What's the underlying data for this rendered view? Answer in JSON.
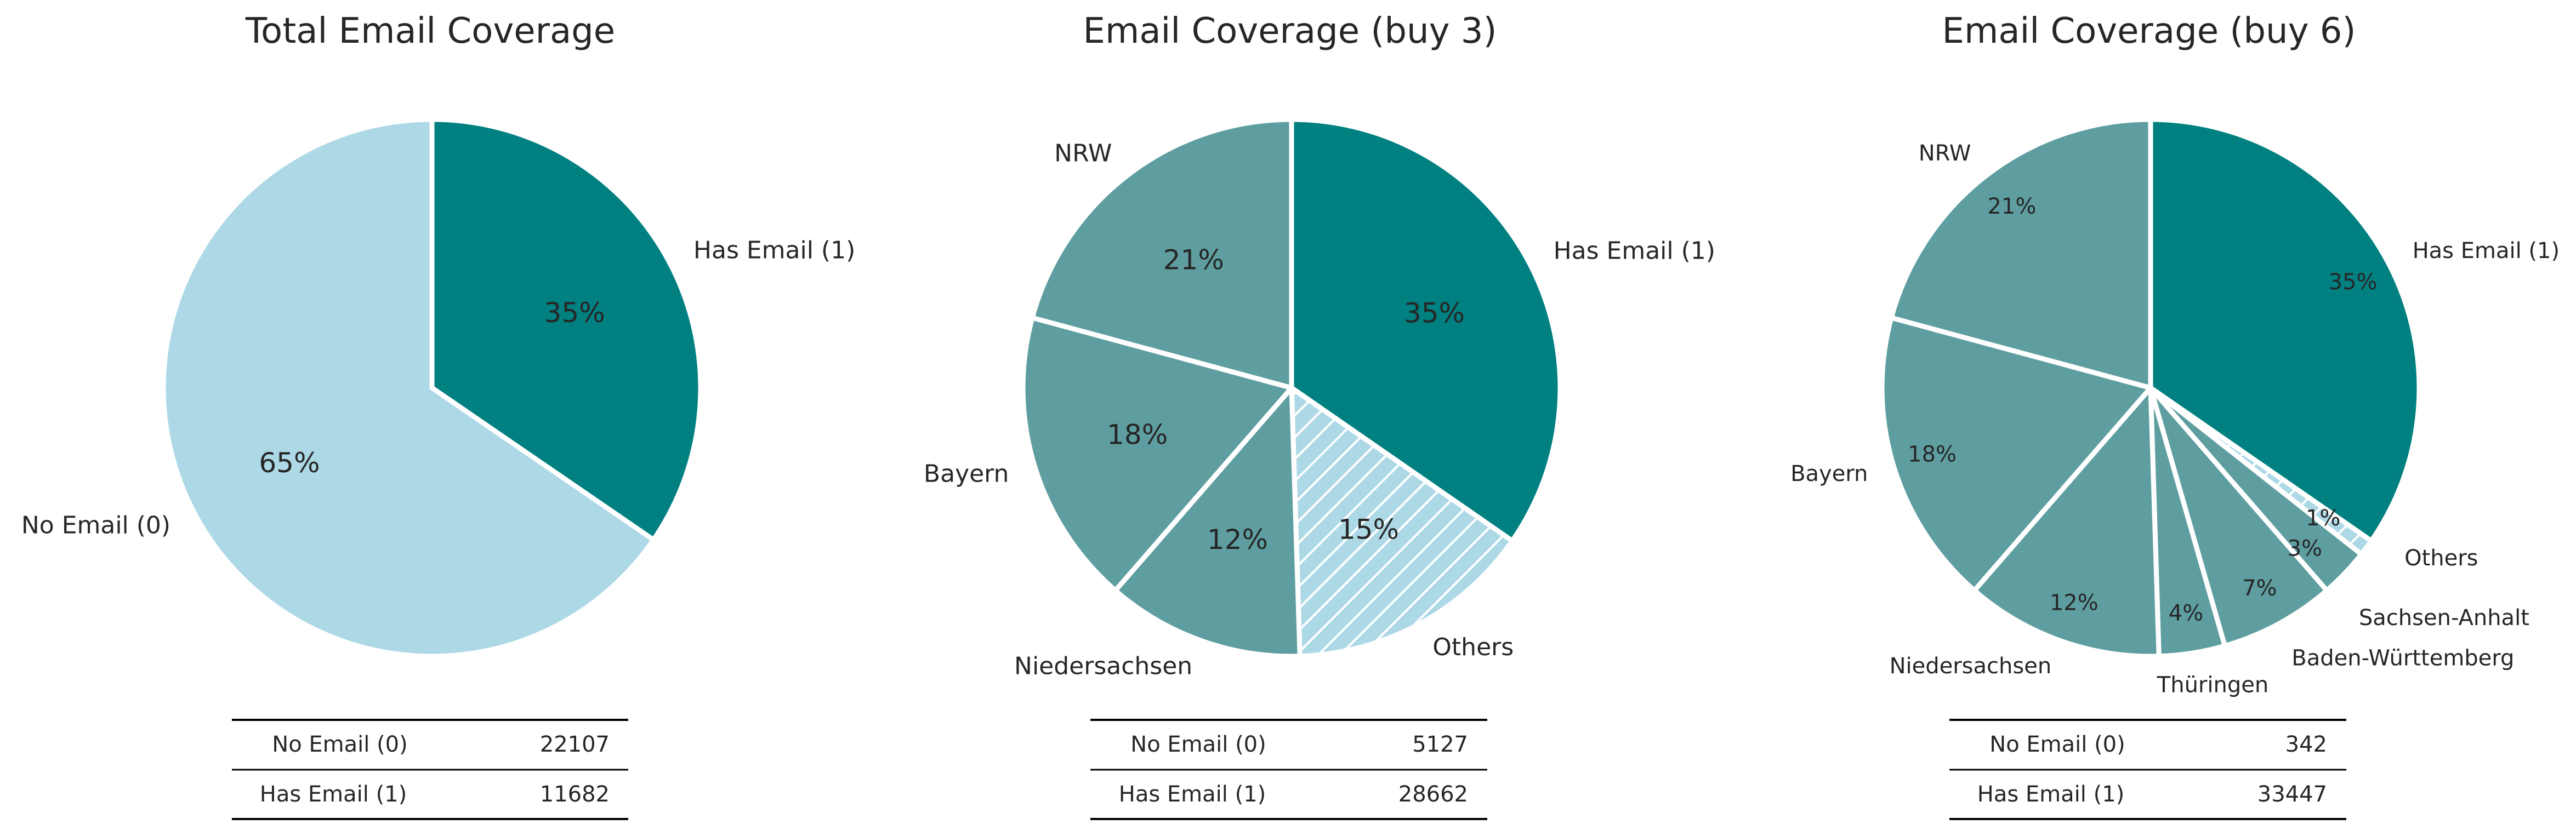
{
  "colors": {
    "has_email": "#008080",
    "no_email": "#add8e6",
    "region": "#5f9ea0",
    "others": "#add8e6",
    "edge": "#ffffff",
    "hatch": "#ffffff",
    "text": "#262626",
    "table_rule": "#000000"
  },
  "chart_data": [
    {
      "type": "pie",
      "title": "Total Email Coverage",
      "start_angle_deg": 90,
      "direction": "clockwise",
      "slices": [
        {
          "label": "Has Email (1)",
          "value": 11682,
          "pct_label": "35%",
          "color_key": "has_email"
        },
        {
          "label": "No Email (0)",
          "value": 22107,
          "pct_label": "65%",
          "color_key": "no_email"
        }
      ],
      "table": [
        {
          "label": "No Email (0)",
          "value": "22107"
        },
        {
          "label": "Has Email (1)",
          "value": "11682"
        }
      ]
    },
    {
      "type": "pie",
      "title": "Email Coverage (buy 3)",
      "start_angle_deg": 90,
      "direction": "clockwise",
      "slices": [
        {
          "label": "Has Email (1)",
          "value": 35,
          "pct_label": "35%",
          "color_key": "has_email"
        },
        {
          "label": "Others",
          "value": 15,
          "pct_label": "15%",
          "color_key": "others",
          "hatch": true
        },
        {
          "label": "Niedersachsen",
          "value": 12,
          "pct_label": "12%",
          "color_key": "region"
        },
        {
          "label": "Bayern",
          "value": 18,
          "pct_label": "18%",
          "color_key": "region"
        },
        {
          "label": "NRW",
          "value": 21,
          "pct_label": "21%",
          "color_key": "region"
        }
      ],
      "table": [
        {
          "label": "No Email (0)",
          "value": "5127"
        },
        {
          "label": "Has Email (1)",
          "value": "28662"
        }
      ]
    },
    {
      "type": "pie",
      "title": "Email Coverage (buy 6)",
      "start_angle_deg": 90,
      "direction": "clockwise",
      "slices": [
        {
          "label": "Has Email (1)",
          "value": 35,
          "pct_label": "35%",
          "color_key": "has_email"
        },
        {
          "label": "Others",
          "value": 1,
          "pct_label": "1%",
          "color_key": "others",
          "hatch": true
        },
        {
          "label": "Sachsen-Anhalt",
          "value": 3,
          "pct_label": "3%",
          "color_key": "region"
        },
        {
          "label": "Baden-Württemberg",
          "value": 7,
          "pct_label": "7%",
          "color_key": "region"
        },
        {
          "label": "Thüringen",
          "value": 4,
          "pct_label": "4%",
          "color_key": "region"
        },
        {
          "label": "Niedersachsen",
          "value": 12,
          "pct_label": "12%",
          "color_key": "region"
        },
        {
          "label": "Bayern",
          "value": 18,
          "pct_label": "18%",
          "color_key": "region"
        },
        {
          "label": "NRW",
          "value": 21,
          "pct_label": "21%",
          "color_key": "region"
        }
      ],
      "table": [
        {
          "label": "No Email (0)",
          "value": "342"
        },
        {
          "label": "Has Email (1)",
          "value": "33447"
        }
      ]
    }
  ]
}
